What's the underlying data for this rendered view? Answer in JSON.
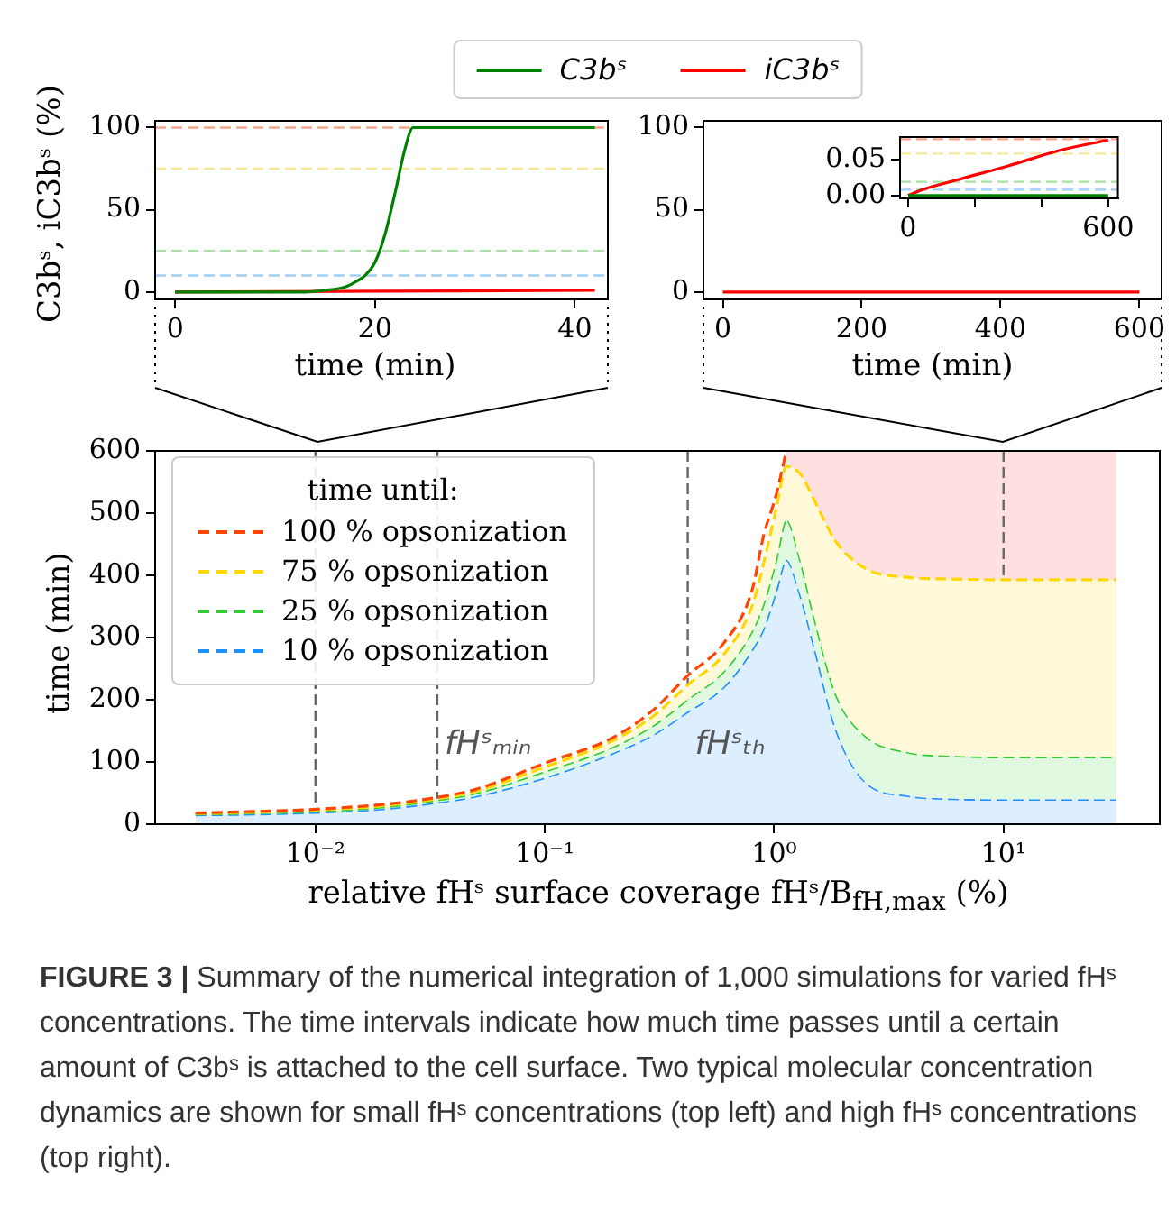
{
  "chart_data": [
    {
      "type": "line",
      "xlabel": "time (min)",
      "ylabel": "C3bˢ, iC3bˢ (%)",
      "xlim": [
        -2,
        43.3
      ],
      "ylim": [
        -4.5,
        104.1
      ],
      "xticks": [
        0,
        20,
        40
      ],
      "yticks": [
        0,
        50,
        100
      ],
      "legend": "top",
      "line_style": "solid",
      "series": [
        {
          "name": "C3bˢ",
          "color": "#008000",
          "x": [
            0,
            5,
            10,
            13,
            15,
            17,
            18,
            19,
            20,
            21,
            22,
            23,
            23.8,
            30,
            42
          ],
          "values": [
            0,
            0,
            0,
            0,
            1,
            3,
            6,
            10,
            18,
            35,
            60,
            87,
            100,
            100,
            100
          ]
        },
        {
          "name": "iC3bˢ",
          "color": "#ff0000",
          "x": [
            0,
            42
          ],
          "values": [
            0,
            1
          ]
        }
      ],
      "ref_lines": [
        {
          "axis": "y",
          "value": 100,
          "color": "#f7a58f",
          "line_style": "dashed"
        },
        {
          "axis": "y",
          "value": 75,
          "color": "#f9e79a",
          "line_style": "dashed"
        },
        {
          "axis": "y",
          "value": 25,
          "color": "#a6e3a1",
          "line_style": "dashed"
        },
        {
          "axis": "y",
          "value": 10,
          "color": "#9fcff7",
          "line_style": "dashed"
        }
      ]
    },
    {
      "type": "line",
      "xlabel": "time (min)",
      "xlim": [
        -28,
        632
      ],
      "ylim": [
        -4.5,
        104.1
      ],
      "xticks": [
        0,
        200,
        400,
        600
      ],
      "yticks": [
        0,
        50,
        100
      ],
      "line_style": "solid",
      "series": [
        {
          "color": "#ff0000",
          "x": [
            0,
            600
          ],
          "values": [
            0,
            0
          ]
        }
      ]
    },
    {
      "type": "line",
      "xlim": [
        -24,
        629
      ],
      "ylim": [
        -0.004,
        0.081
      ],
      "xticks": [
        0,
        {
          "value": 200,
          "label": null
        },
        {
          "value": 400,
          "label": null
        },
        600
      ],
      "yticks": [
        {
          "value": 0,
          "label": "0.00"
        },
        {
          "value": 0.05,
          "label": "0.05"
        }
      ],
      "line_style": "solid",
      "series": [
        {
          "color": "#008000",
          "x": [
            0,
            600
          ],
          "values": [
            0,
            0
          ]
        },
        {
          "color": "#ff0000",
          "x": [
            0,
            50,
            150,
            300,
            450,
            600
          ],
          "values": [
            0,
            0.009,
            0.022,
            0.041,
            0.062,
            0.077
          ]
        }
      ],
      "ref_lines": [
        {
          "axis": "y",
          "value": 0.078,
          "color": "#f7a58f",
          "line_style": "dashed"
        },
        {
          "axis": "y",
          "value": 0.058,
          "color": "#f9e79a",
          "line_style": "dashed"
        },
        {
          "axis": "y",
          "value": 0.019,
          "color": "#a6e3a1",
          "line_style": "dashed"
        },
        {
          "axis": "y",
          "value": 0.008,
          "color": "#9fcff7",
          "line_style": "dashed"
        }
      ]
    },
    {
      "type": "line",
      "xlabel": "relative fHˢ surface coverage fHˢ/B$_{fH,max}$ (%)",
      "ylabel": "time (min)",
      "log": "x",
      "xlim": [
        0.002,
        48
      ],
      "ylim": [
        0,
        600
      ],
      "xticks": [
        {
          "value": 0.01,
          "label": "10⁻²"
        },
        {
          "value": 0.1,
          "label": "10⁻¹"
        },
        {
          "value": 1,
          "label": "10⁰"
        },
        {
          "value": 10,
          "label": "10¹"
        }
      ],
      "yticks": [
        0,
        100,
        200,
        300,
        400,
        500,
        600
      ],
      "legend": "top left",
      "legend_title": "time until:",
      "line_style": "dashed",
      "x": [
        0.003,
        0.005,
        0.01,
        0.02,
        0.034,
        0.05,
        0.1,
        0.2,
        0.3,
        0.42,
        0.6,
        0.8,
        0.9,
        1.02,
        1.13,
        1.3,
        1.5,
        1.86,
        2.5,
        3.8,
        6,
        10,
        20,
        31
      ],
      "series": [
        {
          "name": "100 % opsonization",
          "type": "line",
          "color": "#ff4500",
          "values": [
            18,
            20,
            24,
            32,
            43,
            56,
            98,
            140,
            185,
            239,
            290,
            375,
            464,
            529,
            600,
            null,
            null,
            null,
            null,
            null,
            null,
            null,
            null,
            null
          ]
        },
        {
          "name": "75 % opsonization",
          "type": "area",
          "color": "#ffd700",
          "values": [
            17,
            19,
            23,
            30,
            41,
            53,
            92,
            135,
            175,
            224,
            272,
            350,
            420,
            506,
            575,
            563,
            520,
            454,
            411,
            397,
            394,
            393,
            393,
            393
          ]
        },
        {
          "name": "25 % opsonization",
          "type": "area",
          "color": "#32cd32",
          "values": [
            16,
            18,
            21,
            28,
            39,
            50,
            85,
            125,
            160,
            201,
            245,
            310,
            355,
            425,
            490,
            425,
            331,
            209,
            142,
            116,
            110,
            108,
            108,
            108
          ]
        },
        {
          "name": "10 % opsonization",
          "type": "area",
          "color": "#1e90ff",
          "values": [
            15,
            16,
            19,
            25,
            35,
            45,
            75,
            115,
            145,
            181,
            220,
            280,
            315,
            375,
            425,
            369,
            284,
            153,
            68,
            46,
            41,
            40,
            40,
            40
          ]
        }
      ],
      "ref_lines": [
        {
          "axis": "x",
          "value": 0.01,
          "color": "#666666",
          "line_style": "dashed"
        },
        {
          "axis": "x",
          "value": 0.034,
          "label": "fHˢₘᵢₙ",
          "color": "#666666",
          "line_style": "dashed"
        },
        {
          "axis": "x",
          "value": 0.42,
          "label": "fHˢₜₕ",
          "color": "#666666",
          "line_style": "dashed"
        },
        {
          "axis": "x",
          "value": 10,
          "color": "#666666",
          "line_style": "dashed"
        }
      ],
      "bands": [
        {
          "axis": "x",
          "from": 1.13,
          "to": 31,
          "color": "#ffe0e0"
        }
      ],
      "annotations": [
        "FIGURE 3 | Summary of the numerical integration of 1,000 simulations for varied fHˢ concentrations. The time intervals indicate how much time passes until a certain amount of C3bˢ is attached to the cell surface. Two typical molecular concentration dynamics are shown for small fHˢ concentrations (top left) and high fHˢ concentrations (top right)."
      ]
    }
  ]
}
